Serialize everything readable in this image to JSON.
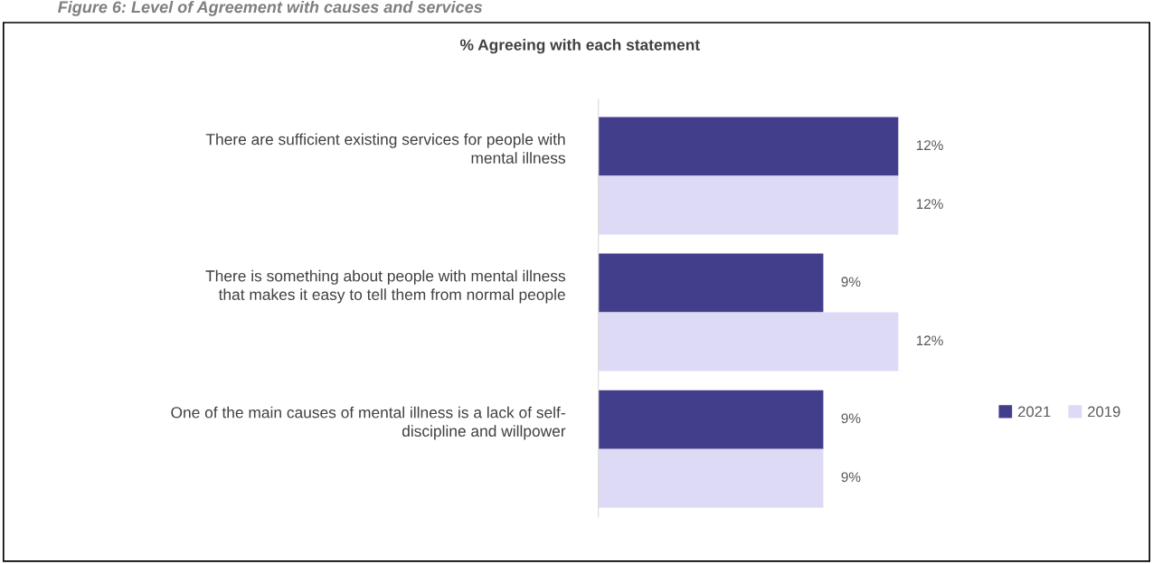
{
  "chart_data": {
    "type": "bar",
    "orientation": "horizontal",
    "title": "% Agreeing with each statement",
    "annotations": [
      "Figure 6: Level of Agreement with causes and services"
    ],
    "categories": [
      "There are sufficient existing services for people with\nmental illness",
      "There is something about people with mental illness\nthat makes it easy to tell them from normal people",
      "One of the main causes of mental illness is a lack of self-\ndiscipline and willpower"
    ],
    "series": [
      {
        "name": "2021",
        "color": "#433e8b",
        "values": [
          12,
          9,
          9
        ],
        "value_labels": [
          "12%",
          "9%",
          "9%"
        ]
      },
      {
        "name": "2019",
        "color": "#dcdaf5",
        "values": [
          12,
          12,
          9
        ],
        "value_labels": [
          "12%",
          "12%",
          "9%"
        ]
      }
    ],
    "legend": "right",
    "tick_labels": "y"
  }
}
